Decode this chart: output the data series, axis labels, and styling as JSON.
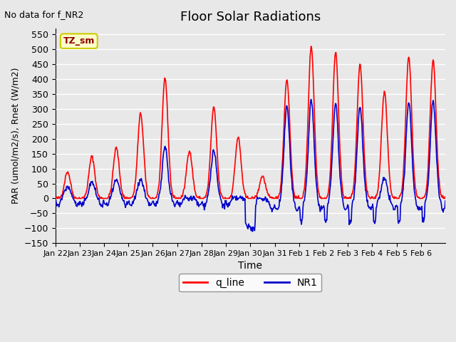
{
  "title": "Floor Solar Radiations",
  "top_left_text": "No data for f_NR2",
  "annotation_text": "TZ_sm",
  "xlabel": "Time",
  "ylabel": "PAR (umol/m2/s), Rnet (W/m2)",
  "ylim": [
    -150,
    570
  ],
  "yticks": [
    -150,
    -100,
    -50,
    0,
    50,
    100,
    150,
    200,
    250,
    300,
    350,
    400,
    450,
    500,
    550
  ],
  "x_tick_labels": [
    "Jan 22",
    "Jan 23",
    "Jan 24",
    "Jan 25",
    "Jan 26",
    "Jan 27",
    "Jan 28",
    "Jan 29",
    "Jan 30",
    "Jan 31",
    "Feb 1",
    "Feb 2",
    "Feb 3",
    "Feb 4",
    "Feb 5",
    "Feb 6"
  ],
  "q_line_color": "#FF0000",
  "nr1_color": "#0000CC",
  "background_color": "#E8E8E8",
  "grid_color": "#FFFFFF",
  "legend_q_line": "q_line",
  "legend_nr1": "NR1",
  "annotation_bg": "#FFFFCC",
  "annotation_border": "#CCCC00"
}
